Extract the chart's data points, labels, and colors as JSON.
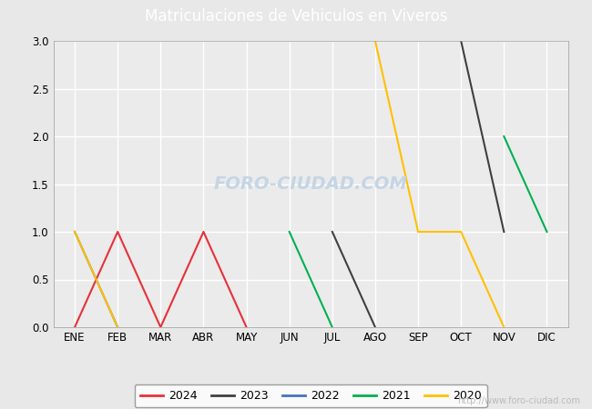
{
  "title": "Matriculaciones de Vehiculos en Viveros",
  "title_color": "white",
  "title_bg_color": "#4a86c8",
  "months": [
    "ENE",
    "FEB",
    "MAR",
    "ABR",
    "MAY",
    "JUN",
    "JUL",
    "AGO",
    "SEP",
    "OCT",
    "NOV",
    "DIC"
  ],
  "series": {
    "2024": {
      "color": "#e8303a",
      "data": [
        0,
        1,
        0,
        1,
        0,
        null,
        null,
        null,
        null,
        null,
        null,
        null
      ]
    },
    "2023": {
      "color": "#404040",
      "data": [
        null,
        null,
        null,
        null,
        null,
        null,
        1,
        0,
        null,
        3,
        1,
        null
      ]
    },
    "2022": {
      "color": "#4472c4",
      "data": [
        1,
        0,
        null,
        null,
        null,
        null,
        null,
        null,
        null,
        null,
        null,
        null
      ]
    },
    "2021": {
      "color": "#00b050",
      "data": [
        null,
        null,
        null,
        null,
        null,
        1,
        0,
        null,
        null,
        null,
        2,
        1
      ]
    },
    "2020": {
      "color": "#ffc000",
      "data": [
        1,
        0,
        null,
        null,
        null,
        null,
        null,
        3,
        1,
        1,
        0,
        null
      ]
    }
  },
  "ylim": [
    0,
    3.0
  ],
  "yticks": [
    0.0,
    0.5,
    1.0,
    1.5,
    2.0,
    2.5,
    3.0
  ],
  "bg_color": "#e8e8e8",
  "plot_bg_color": "#ebebeb",
  "grid_color": "white",
  "legend_order": [
    "2024",
    "2023",
    "2022",
    "2021",
    "2020"
  ],
  "watermark": "http://www.foro-ciudad.com",
  "watermark_color": "#bbbbbb",
  "foro_watermark": "FORO-CIUDAD.COM",
  "foro_watermark_color": "#c5d5e5"
}
